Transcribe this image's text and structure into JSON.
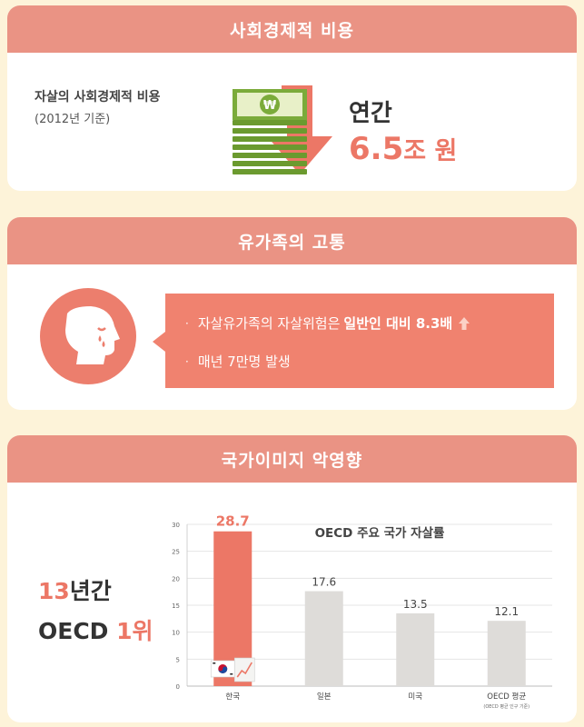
{
  "section1": {
    "title": "사회경제적 비용",
    "label": "자살의 사회경제적 비용",
    "sublabel": "(2012년 기준)",
    "annual_label": "연간",
    "annual_value": "6.5",
    "annual_unit": "조 원",
    "icon": "money-stack-down-arrow-icon"
  },
  "section2": {
    "title": "유가족의 고통",
    "icon": "crying-face-icon",
    "bullet1_prefix": "자살유가족의 자살위험은",
    "bullet1_highlight": "일반인 대비 8.3배",
    "bullet2": "매년 7만명 발생"
  },
  "section3": {
    "title": "국가이미지 악영향",
    "years_num": "13",
    "years_suffix": "년간",
    "rank_prefix": "OECD ",
    "rank_value": "1위"
  },
  "chart_data": {
    "type": "bar",
    "title": "OECD 주요 국가 자살률",
    "categories": [
      "한국",
      "일본",
      "미국",
      "OECD 평균"
    ],
    "category_note": "(OECD 평균 인구 기준)",
    "values": [
      28.7,
      17.6,
      13.5,
      12.1
    ],
    "value_labels": [
      "28.7",
      "17.6",
      "13.5",
      "12.1"
    ],
    "ylim": [
      0,
      30
    ],
    "yticks": [
      0,
      5,
      10,
      15,
      20,
      25,
      30
    ],
    "ytick_labels": [
      "0",
      "5",
      "10",
      "15",
      "20",
      "25",
      "30"
    ],
    "grid": true,
    "colors": {
      "highlight": "#ec7766",
      "default": "#dedcd9"
    },
    "highlight_index": 0
  }
}
